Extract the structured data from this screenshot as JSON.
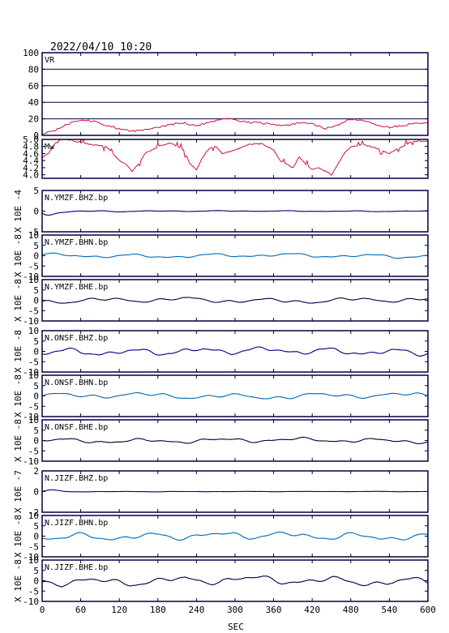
{
  "header": {
    "timestamp": "2022/04/10 10:20"
  },
  "colors": {
    "vr": "#d0103a",
    "mw": "#d0103a",
    "bhz": "#000080",
    "bhn": "#0068b8",
    "bhe": "#000040",
    "frame": "#000040",
    "grid": "#000040"
  },
  "chart_data": {
    "type": "line",
    "xlabel": "SEC",
    "xlim": [
      0,
      600
    ],
    "xticks": [
      "0",
      "60",
      "120",
      "180",
      "240",
      "300",
      "360",
      "420",
      "480",
      "540",
      "600"
    ],
    "panels": [
      {
        "id": "vr",
        "label": "VR",
        "ylabel": "",
        "ylim": [
          0,
          100
        ],
        "yticks": [
          "100",
          "80",
          "60",
          "40",
          "20",
          "0"
        ],
        "tick_values": [
          100,
          80,
          60,
          40,
          20,
          0
        ],
        "grid": true,
        "color_key": "vr",
        "x": [
          0,
          20,
          40,
          60,
          80,
          100,
          120,
          140,
          160,
          180,
          200,
          220,
          240,
          260,
          280,
          300,
          320,
          340,
          360,
          380,
          400,
          420,
          440,
          460,
          480,
          500,
          520,
          540,
          560,
          580,
          600
        ],
        "y": [
          2,
          6,
          14,
          19,
          17,
          12,
          8,
          5,
          7,
          10,
          13,
          15,
          12,
          16,
          20,
          19,
          16,
          15,
          13,
          12,
          15,
          14,
          8,
          12,
          20,
          18,
          12,
          10,
          12,
          14,
          15
        ]
      },
      {
        "id": "mw",
        "label": "Mw",
        "ylabel": "",
        "ylim": [
          3.9,
          5.0
        ],
        "yticks": [
          "5.0",
          "4.8",
          "4.6",
          "4.4",
          "4.2",
          "4.0"
        ],
        "tick_values": [
          5.0,
          4.8,
          4.6,
          4.4,
          4.2,
          4.0
        ],
        "grid": false,
        "color_key": "mw",
        "x": [
          0,
          10,
          20,
          30,
          40,
          50,
          60,
          80,
          100,
          110,
          120,
          130,
          140,
          150,
          160,
          180,
          200,
          220,
          230,
          240,
          250,
          260,
          270,
          280,
          300,
          320,
          340,
          360,
          370,
          380,
          390,
          400,
          410,
          420,
          430,
          440,
          450,
          460,
          470,
          480,
          500,
          520,
          540,
          560,
          570,
          580,
          590,
          600
        ],
        "y": [
          4.5,
          4.6,
          4.9,
          5.0,
          5.0,
          4.95,
          4.9,
          4.85,
          4.8,
          4.6,
          4.4,
          4.3,
          4.1,
          4.3,
          4.6,
          4.8,
          4.9,
          4.7,
          4.3,
          4.15,
          4.5,
          4.75,
          4.8,
          4.6,
          4.7,
          4.85,
          4.9,
          4.7,
          4.4,
          4.3,
          4.2,
          4.5,
          4.3,
          4.15,
          4.2,
          4.1,
          4.0,
          4.3,
          4.6,
          4.8,
          4.85,
          4.75,
          4.6,
          4.8,
          4.9,
          4.95,
          4.95,
          4.95
        ]
      },
      {
        "id": "ymzf-bhz",
        "label": "N.YMZF.BHZ.bp",
        "ylabel": "X 10E -4",
        "ylim": [
          -5,
          5
        ],
        "yticks": [
          "5",
          "0",
          "-5"
        ],
        "tick_values": [
          5,
          0,
          -5
        ],
        "color_key": "bhz",
        "amp": 0.3,
        "seed": 11,
        "decay": true
      },
      {
        "id": "ymzf-bhn",
        "label": "N.YMZF.BHN.bp",
        "ylabel": "X 10E -8",
        "ylim": [
          -10,
          10
        ],
        "yticks": [
          "10",
          "5",
          "0",
          "-5",
          "-10"
        ],
        "tick_values": [
          10,
          5,
          0,
          -5,
          -10
        ],
        "color_key": "bhn",
        "amp": 0.7,
        "seed": 23,
        "decay": false
      },
      {
        "id": "ymzf-bhe",
        "label": "N.YMZF.BHE.bp",
        "ylabel": "X 10E -8",
        "ylim": [
          -10,
          10
        ],
        "yticks": [
          "10",
          "5",
          "0",
          "-5",
          "-10"
        ],
        "tick_values": [
          10,
          5,
          0,
          -5,
          -10
        ],
        "color_key": "bhe",
        "amp": 0.9,
        "seed": 37,
        "decay": false
      },
      {
        "id": "onsf-bhz",
        "label": "N.ONSF.BHZ.bp",
        "ylabel": "X 10E -8",
        "ylim": [
          -10,
          10
        ],
        "yticks": [
          "10",
          "5",
          "0",
          "-5",
          "-10"
        ],
        "tick_values": [
          10,
          5,
          0,
          -5,
          -10
        ],
        "color_key": "bhz",
        "amp": 1.2,
        "seed": 41,
        "decay": false
      },
      {
        "id": "onsf-bhn",
        "label": "N.ONSF.BHN.bp",
        "ylabel": "X 10E -8",
        "ylim": [
          -10,
          10
        ],
        "yticks": [
          "10",
          "5",
          "0",
          "-5",
          "-10"
        ],
        "tick_values": [
          10,
          5,
          0,
          -5,
          -10
        ],
        "color_key": "bhn",
        "amp": 1.0,
        "seed": 53,
        "decay": false
      },
      {
        "id": "onsf-bhe",
        "label": "N.ONSF.BHE.bp",
        "ylabel": "X 10E -8",
        "ylim": [
          -10,
          10
        ],
        "yticks": [
          "10",
          "5",
          "0",
          "-5",
          "-10"
        ],
        "tick_values": [
          10,
          5,
          0,
          -5,
          -10
        ],
        "color_key": "bhe",
        "amp": 0.8,
        "seed": 67,
        "decay": false
      },
      {
        "id": "jizf-bhz",
        "label": "N.JIZF.BHZ.bp",
        "ylabel": "X 10E -7",
        "ylim": [
          -2,
          2
        ],
        "yticks": [
          "2",
          "0",
          "-2"
        ],
        "tick_values": [
          2,
          0,
          -2
        ],
        "color_key": "bhz",
        "amp": 0.05,
        "seed": 79,
        "decay": true
      },
      {
        "id": "jizf-bhn",
        "label": "N.JIZF.BHN.bp",
        "ylabel": "X 10E -8",
        "ylim": [
          -10,
          10
        ],
        "yticks": [
          "10",
          "5",
          "0",
          "-5",
          "-10"
        ],
        "tick_values": [
          10,
          5,
          0,
          -5,
          -10
        ],
        "color_key": "bhn",
        "amp": 1.3,
        "seed": 83,
        "decay": false
      },
      {
        "id": "jizf-bhe",
        "label": "N.JIZF.BHE.bp",
        "ylabel": "X 10E -8",
        "ylim": [
          -10,
          10
        ],
        "yticks": [
          "10",
          "5",
          "0",
          "-5",
          "-10"
        ],
        "tick_values": [
          10,
          5,
          0,
          -5,
          -10
        ],
        "color_key": "bhe",
        "amp": 1.5,
        "seed": 97,
        "decay": false
      }
    ]
  }
}
